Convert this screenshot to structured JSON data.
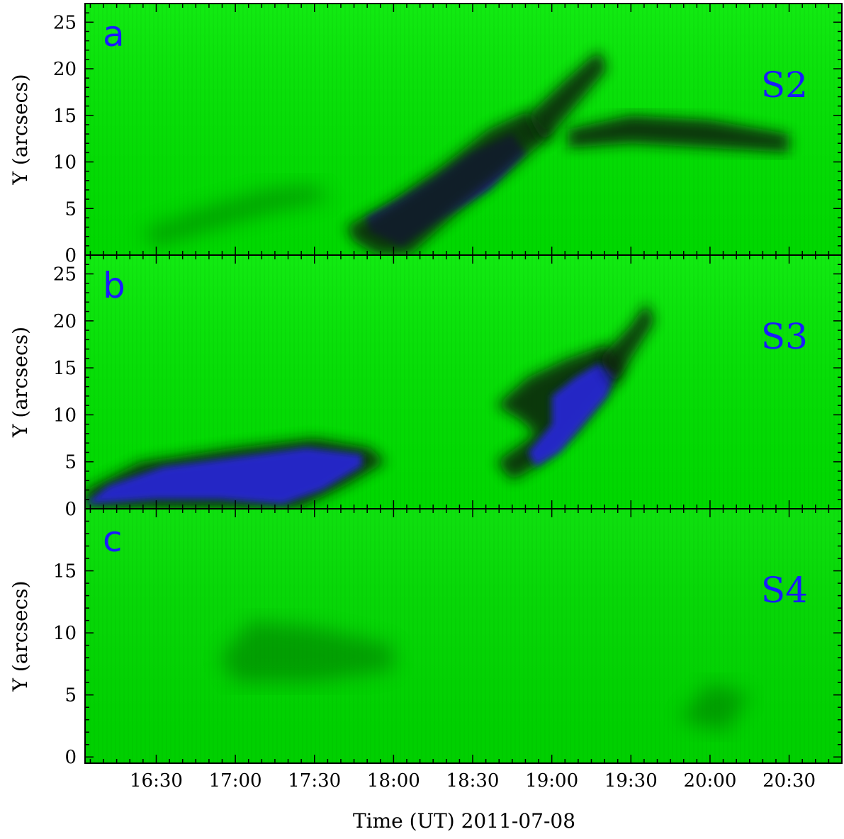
{
  "chart_data": [
    {
      "type": "heatmap",
      "panel_label": "a",
      "tag": "S2",
      "ylabel": "Y (arcsecs)",
      "ylim": [
        0,
        27
      ],
      "yticks": [
        0,
        5,
        10,
        15,
        20,
        25
      ],
      "features": [
        {
          "kind": "blue",
          "points": [
            [
              17.83,
              4
            ],
            [
              18.0,
              5.5
            ],
            [
              18.25,
              8
            ],
            [
              18.5,
              11
            ],
            [
              18.75,
              13
            ],
            [
              18.83,
              11
            ],
            [
              18.6,
              7
            ],
            [
              18.3,
              4
            ],
            [
              18.05,
              1
            ],
            [
              17.85,
              2.5
            ]
          ]
        },
        {
          "kind": "dark",
          "points": [
            [
              17.7,
              3
            ],
            [
              18.0,
              6
            ],
            [
              18.3,
              9.5
            ],
            [
              18.6,
              13.5
            ],
            [
              18.85,
              15.5
            ],
            [
              19.0,
              13
            ],
            [
              18.7,
              8.5
            ],
            [
              18.4,
              4.5
            ],
            [
              18.1,
              0
            ],
            [
              17.9,
              0
            ],
            [
              17.75,
              1.5
            ]
          ]
        },
        {
          "kind": "dark",
          "points": [
            [
              18.85,
              15
            ],
            [
              19.1,
              19
            ],
            [
              19.3,
              22
            ],
            [
              19.35,
              20
            ],
            [
              19.15,
              16
            ],
            [
              18.95,
              12
            ]
          ]
        },
        {
          "kind": "dark",
          "points": [
            [
              19.1,
              13.5
            ],
            [
              19.5,
              15
            ],
            [
              20.0,
              14.5
            ],
            [
              20.5,
              13
            ],
            [
              20.5,
              11
            ],
            [
              20.0,
              11.5
            ],
            [
              19.5,
              12
            ],
            [
              19.1,
              11.5
            ]
          ]
        },
        {
          "kind": "faint",
          "points": [
            [
              16.4,
              2.5
            ],
            [
              16.8,
              5
            ],
            [
              17.2,
              7
            ],
            [
              17.5,
              7.5
            ],
            [
              17.6,
              6
            ],
            [
              17.2,
              4.5
            ],
            [
              16.8,
              2.5
            ],
            [
              16.5,
              1
            ]
          ]
        }
      ]
    },
    {
      "type": "heatmap",
      "panel_label": "b",
      "tag": "S3",
      "ylabel": "Y (arcsecs)",
      "ylim": [
        0,
        27
      ],
      "yticks": [
        0,
        5,
        10,
        15,
        20,
        25
      ],
      "features": [
        {
          "kind": "dark",
          "points": [
            [
              16.05,
              0
            ],
            [
              16.05,
              2
            ],
            [
              16.4,
              5
            ],
            [
              17.0,
              6.5
            ],
            [
              17.5,
              7.5
            ],
            [
              17.85,
              6.5
            ],
            [
              17.95,
              5
            ],
            [
              17.7,
              2.5
            ],
            [
              17.4,
              0
            ]
          ]
        },
        {
          "kind": "blue",
          "points": [
            [
              16.05,
              0.5
            ],
            [
              16.2,
              2.5
            ],
            [
              16.55,
              4.5
            ],
            [
              17.0,
              5.5
            ],
            [
              17.45,
              6.5
            ],
            [
              17.8,
              5.8
            ],
            [
              17.8,
              4.5
            ],
            [
              17.55,
              2
            ],
            [
              17.3,
              0.5
            ],
            [
              16.9,
              1
            ],
            [
              16.5,
              1
            ]
          ]
        },
        {
          "kind": "dark",
          "points": [
            [
              18.65,
              11
            ],
            [
              18.85,
              14
            ],
            [
              19.1,
              16
            ],
            [
              19.35,
              17.5
            ],
            [
              19.45,
              15
            ],
            [
              19.35,
              12
            ],
            [
              19.15,
              8
            ],
            [
              18.95,
              5
            ],
            [
              18.75,
              3
            ],
            [
              18.65,
              5
            ],
            [
              18.9,
              8
            ],
            [
              18.8,
              9.5
            ]
          ]
        },
        {
          "kind": "blue",
          "points": [
            [
              19.0,
              12
            ],
            [
              19.15,
              14
            ],
            [
              19.3,
              15.5
            ],
            [
              19.4,
              14.5
            ],
            [
              19.35,
              12
            ],
            [
              19.2,
              9
            ],
            [
              19.05,
              6
            ],
            [
              18.9,
              4.5
            ],
            [
              18.85,
              6
            ],
            [
              19.0,
              9
            ]
          ]
        },
        {
          "kind": "dark",
          "points": [
            [
              19.3,
              16
            ],
            [
              19.5,
              19.5
            ],
            [
              19.6,
              22
            ],
            [
              19.65,
              20
            ],
            [
              19.5,
              16
            ],
            [
              19.4,
              13
            ]
          ]
        }
      ]
    },
    {
      "type": "heatmap",
      "panel_label": "c",
      "tag": "S4",
      "ylabel": "Y (arcsecs)",
      "ylim": [
        -0.5,
        20
      ],
      "yticks": [
        0,
        5,
        10,
        15
      ],
      "features": [
        {
          "kind": "faint",
          "points": [
            [
              16.9,
              8
            ],
            [
              17.1,
              11
            ],
            [
              17.5,
              10.5
            ],
            [
              18.0,
              9
            ],
            [
              18.0,
              7
            ],
            [
              17.5,
              6
            ],
            [
              17.0,
              6
            ]
          ]
        },
        {
          "kind": "faint",
          "points": [
            [
              19.8,
              3
            ],
            [
              20.0,
              6
            ],
            [
              20.25,
              5
            ],
            [
              20.1,
              2
            ]
          ]
        }
      ]
    }
  ],
  "xaxis": {
    "xlabel": "Time (UT) 2011-07-08",
    "xlim": [
      "16:03",
      "20:50"
    ],
    "tick_labels": [
      "16:30",
      "17:00",
      "17:30",
      "18:00",
      "18:30",
      "19:00",
      "19:30",
      "20:00",
      "20:30"
    ]
  },
  "colors": {
    "background": "#00e000",
    "dark": "#0a1a10",
    "blue": "#2828d0"
  }
}
